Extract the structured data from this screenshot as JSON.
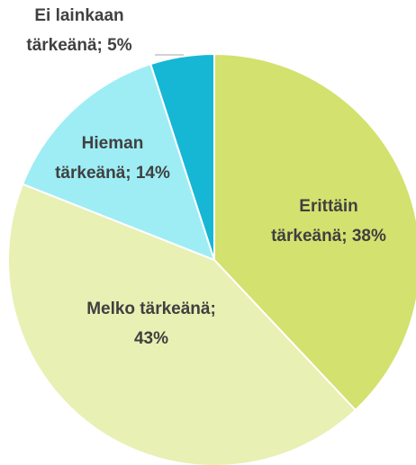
{
  "chart_data": {
    "type": "pie",
    "values": [
      38,
      43,
      14,
      5
    ],
    "value_labels": [
      [
        "Erittäin",
        "tärkeänä; 38%"
      ],
      [
        "Melko tärkeänä;",
        "43%"
      ],
      [
        "Hieman",
        "tärkeänä; 14%"
      ],
      [
        "Ei lainkaan",
        "tärkeänä; 5%"
      ]
    ],
    "colors": [
      "#d3e16e",
      "#e8f0b3",
      "#9eedf5",
      "#16b7d5"
    ]
  }
}
